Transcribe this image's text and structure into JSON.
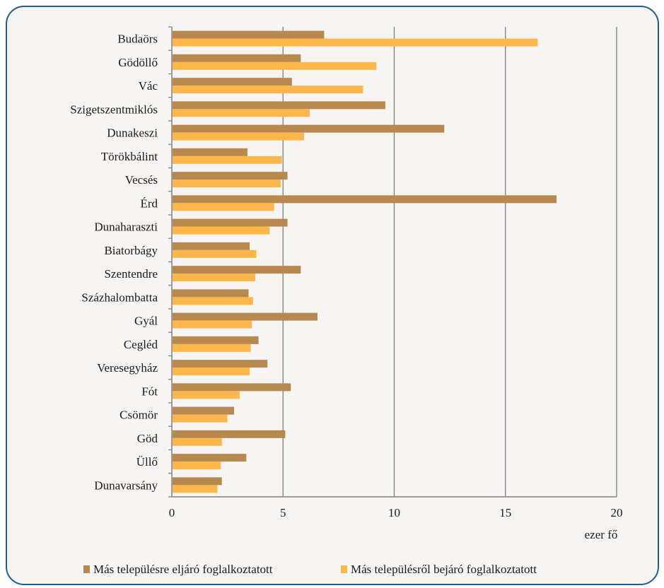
{
  "colors": {
    "series1": "#b8894f",
    "series2": "#fdb64a",
    "grid": "#7f7f7f",
    "frame": "#1f5d8c",
    "background": "#f7f5f3"
  },
  "chart_data": {
    "type": "bar",
    "orientation": "horizontal",
    "categories": [
      "Budaörs",
      "Gödöllő",
      "Vác",
      "Szigetszentmiklós",
      "Dunakeszi",
      "Törökbálint",
      "Vecsés",
      "Érd",
      "Dunaharaszti",
      "Biatorbágy",
      "Szentendre",
      "Százhalombatta",
      "Gyál",
      "Cegléd",
      "Veresegyház",
      "Fót",
      "Csömör",
      "Göd",
      "Üllő",
      "Dunavarsány"
    ],
    "series": [
      {
        "name": "Más településre eljáró foglalkoztatott",
        "values": [
          6.85,
          5.8,
          5.4,
          9.6,
          12.25,
          3.4,
          5.2,
          17.3,
          5.2,
          3.5,
          5.8,
          3.45,
          6.55,
          3.9,
          4.3,
          5.35,
          2.8,
          5.1,
          3.35,
          2.25
        ]
      },
      {
        "name": "Más településről bejáró foglalkoztatott",
        "values": [
          16.45,
          9.2,
          8.6,
          6.2,
          5.95,
          4.95,
          4.9,
          4.6,
          4.4,
          3.8,
          3.75,
          3.65,
          3.6,
          3.55,
          3.5,
          3.05,
          2.5,
          2.25,
          2.2,
          2.05
        ]
      }
    ],
    "xlim": [
      0,
      20
    ],
    "xticks": [
      "0",
      "5",
      "10",
      "15",
      "20"
    ],
    "xlabel": "ezer fő",
    "grid": "vertical",
    "legend_position": "bottom"
  }
}
